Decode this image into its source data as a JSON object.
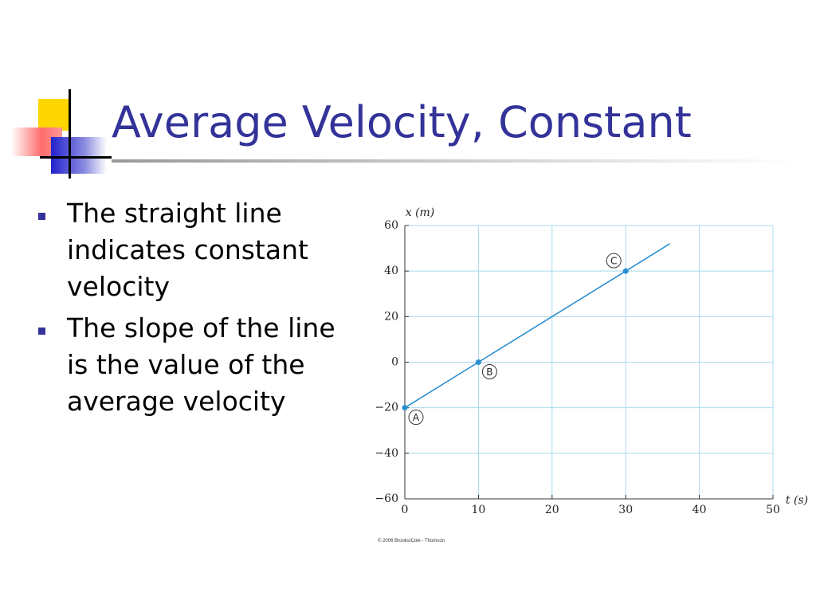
{
  "title": "Average Velocity, Constant",
  "bullets": [
    "The straight line indicates constant velocity",
    "The slope of the line is the value of the average velocity"
  ],
  "copyright": "© 2006 Brooks/Cole - Thomson",
  "chart_data": {
    "type": "line",
    "xlabel": "t (s)",
    "ylabel": "x (m)",
    "x": [
      0,
      10,
      30,
      36
    ],
    "series": [
      {
        "color": "#2a8fd0",
        "values": [
          -20,
          0,
          40,
          52
        ],
        "point_labels": [
          "A",
          "B",
          "C",
          null
        ]
      }
    ],
    "xlim": [
      0,
      50
    ],
    "xticks": [
      0,
      10,
      20,
      30,
      40,
      50
    ],
    "ylim": [
      -60,
      60
    ],
    "yticks": [
      {
        "value": -60,
        "label": "−60"
      },
      {
        "value": -40,
        "label": "−40"
      },
      {
        "value": -20,
        "label": "−20"
      },
      0,
      20,
      40,
      60
    ],
    "grid": true
  }
}
